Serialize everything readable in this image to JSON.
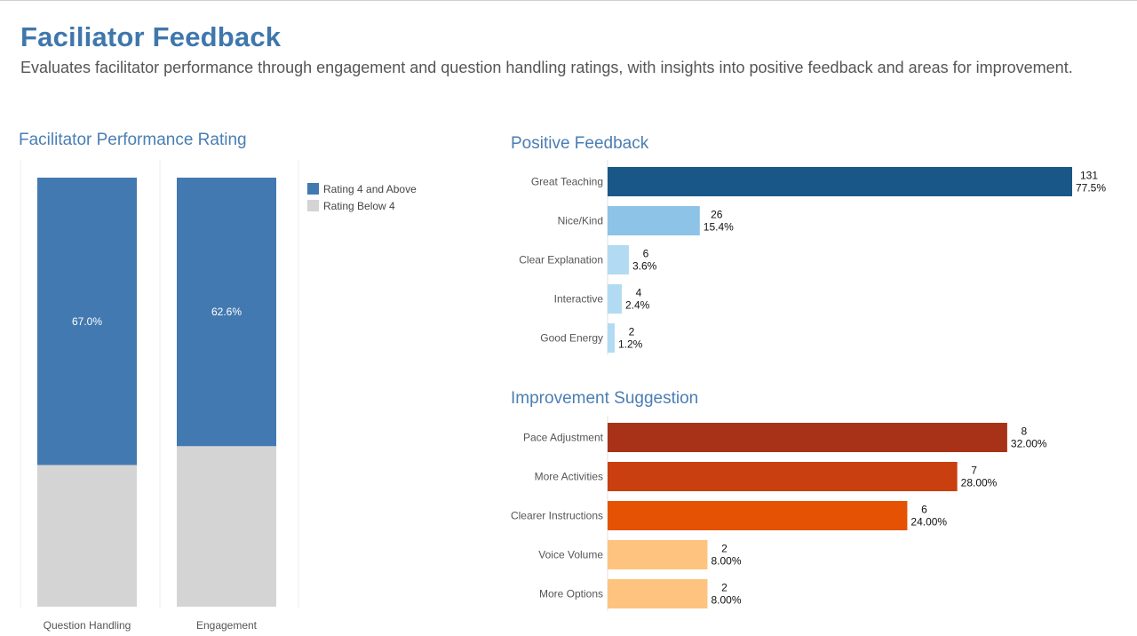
{
  "page": {
    "title": "Faciliator Feedback",
    "subtitle": "Evaluates facilitator performance through engagement and question handling ratings, with insights into positive feedback and areas for improvement."
  },
  "colors": {
    "title": "#3f77ad",
    "rating_above": "#4279b0",
    "rating_below": "#d4d4d4",
    "positive": [
      "#185787",
      "#8cc3e6",
      "#b2dbf3",
      "#b2dbf3",
      "#b2dbf3"
    ],
    "improvement": [
      "#a83217",
      "#ca3f0f",
      "#e55204",
      "#fec47f",
      "#fec47f"
    ]
  },
  "legend": {
    "items": [
      {
        "label": "Rating 4 and Above",
        "color": "#4279b0"
      },
      {
        "label": "Rating Below 4",
        "color": "#d4d4d4"
      }
    ]
  },
  "chart_data": [
    {
      "type": "bar",
      "stacked": true,
      "title": "Facilitator Performance Rating",
      "categories": [
        "Question Handling",
        "Engagement"
      ],
      "series": [
        {
          "name": "Rating 4 and Above",
          "values": [
            67.0,
            62.6
          ],
          "labels": [
            "67.0%",
            "62.6%"
          ]
        },
        {
          "name": "Rating Below 4",
          "values": [
            33.0,
            37.4
          ]
        }
      ],
      "ylim": [
        0,
        100
      ],
      "legend": "top-right"
    },
    {
      "type": "bar",
      "orientation": "horizontal",
      "title": "Positive Feedback",
      "categories": [
        "Great Teaching",
        "Nice/Kind",
        "Clear Explanation",
        "Interactive",
        "Good Energy"
      ],
      "values": [
        131,
        26,
        6,
        4,
        2
      ],
      "percents": [
        "77.5%",
        "15.4%",
        "3.6%",
        "2.4%",
        "1.2%"
      ],
      "xlim": [
        0,
        131
      ]
    },
    {
      "type": "bar",
      "orientation": "horizontal",
      "title": "Improvement Suggestion",
      "categories": [
        "Pace Adjustment",
        "More Activities",
        "Clearer Instructions",
        "Voice Volume",
        "More Options"
      ],
      "values": [
        8,
        7,
        6,
        2,
        2
      ],
      "percents": [
        "32.00%",
        "28.00%",
        "24.00%",
        "8.00%",
        "8.00%"
      ],
      "xlim": [
        0,
        9.3
      ]
    }
  ]
}
